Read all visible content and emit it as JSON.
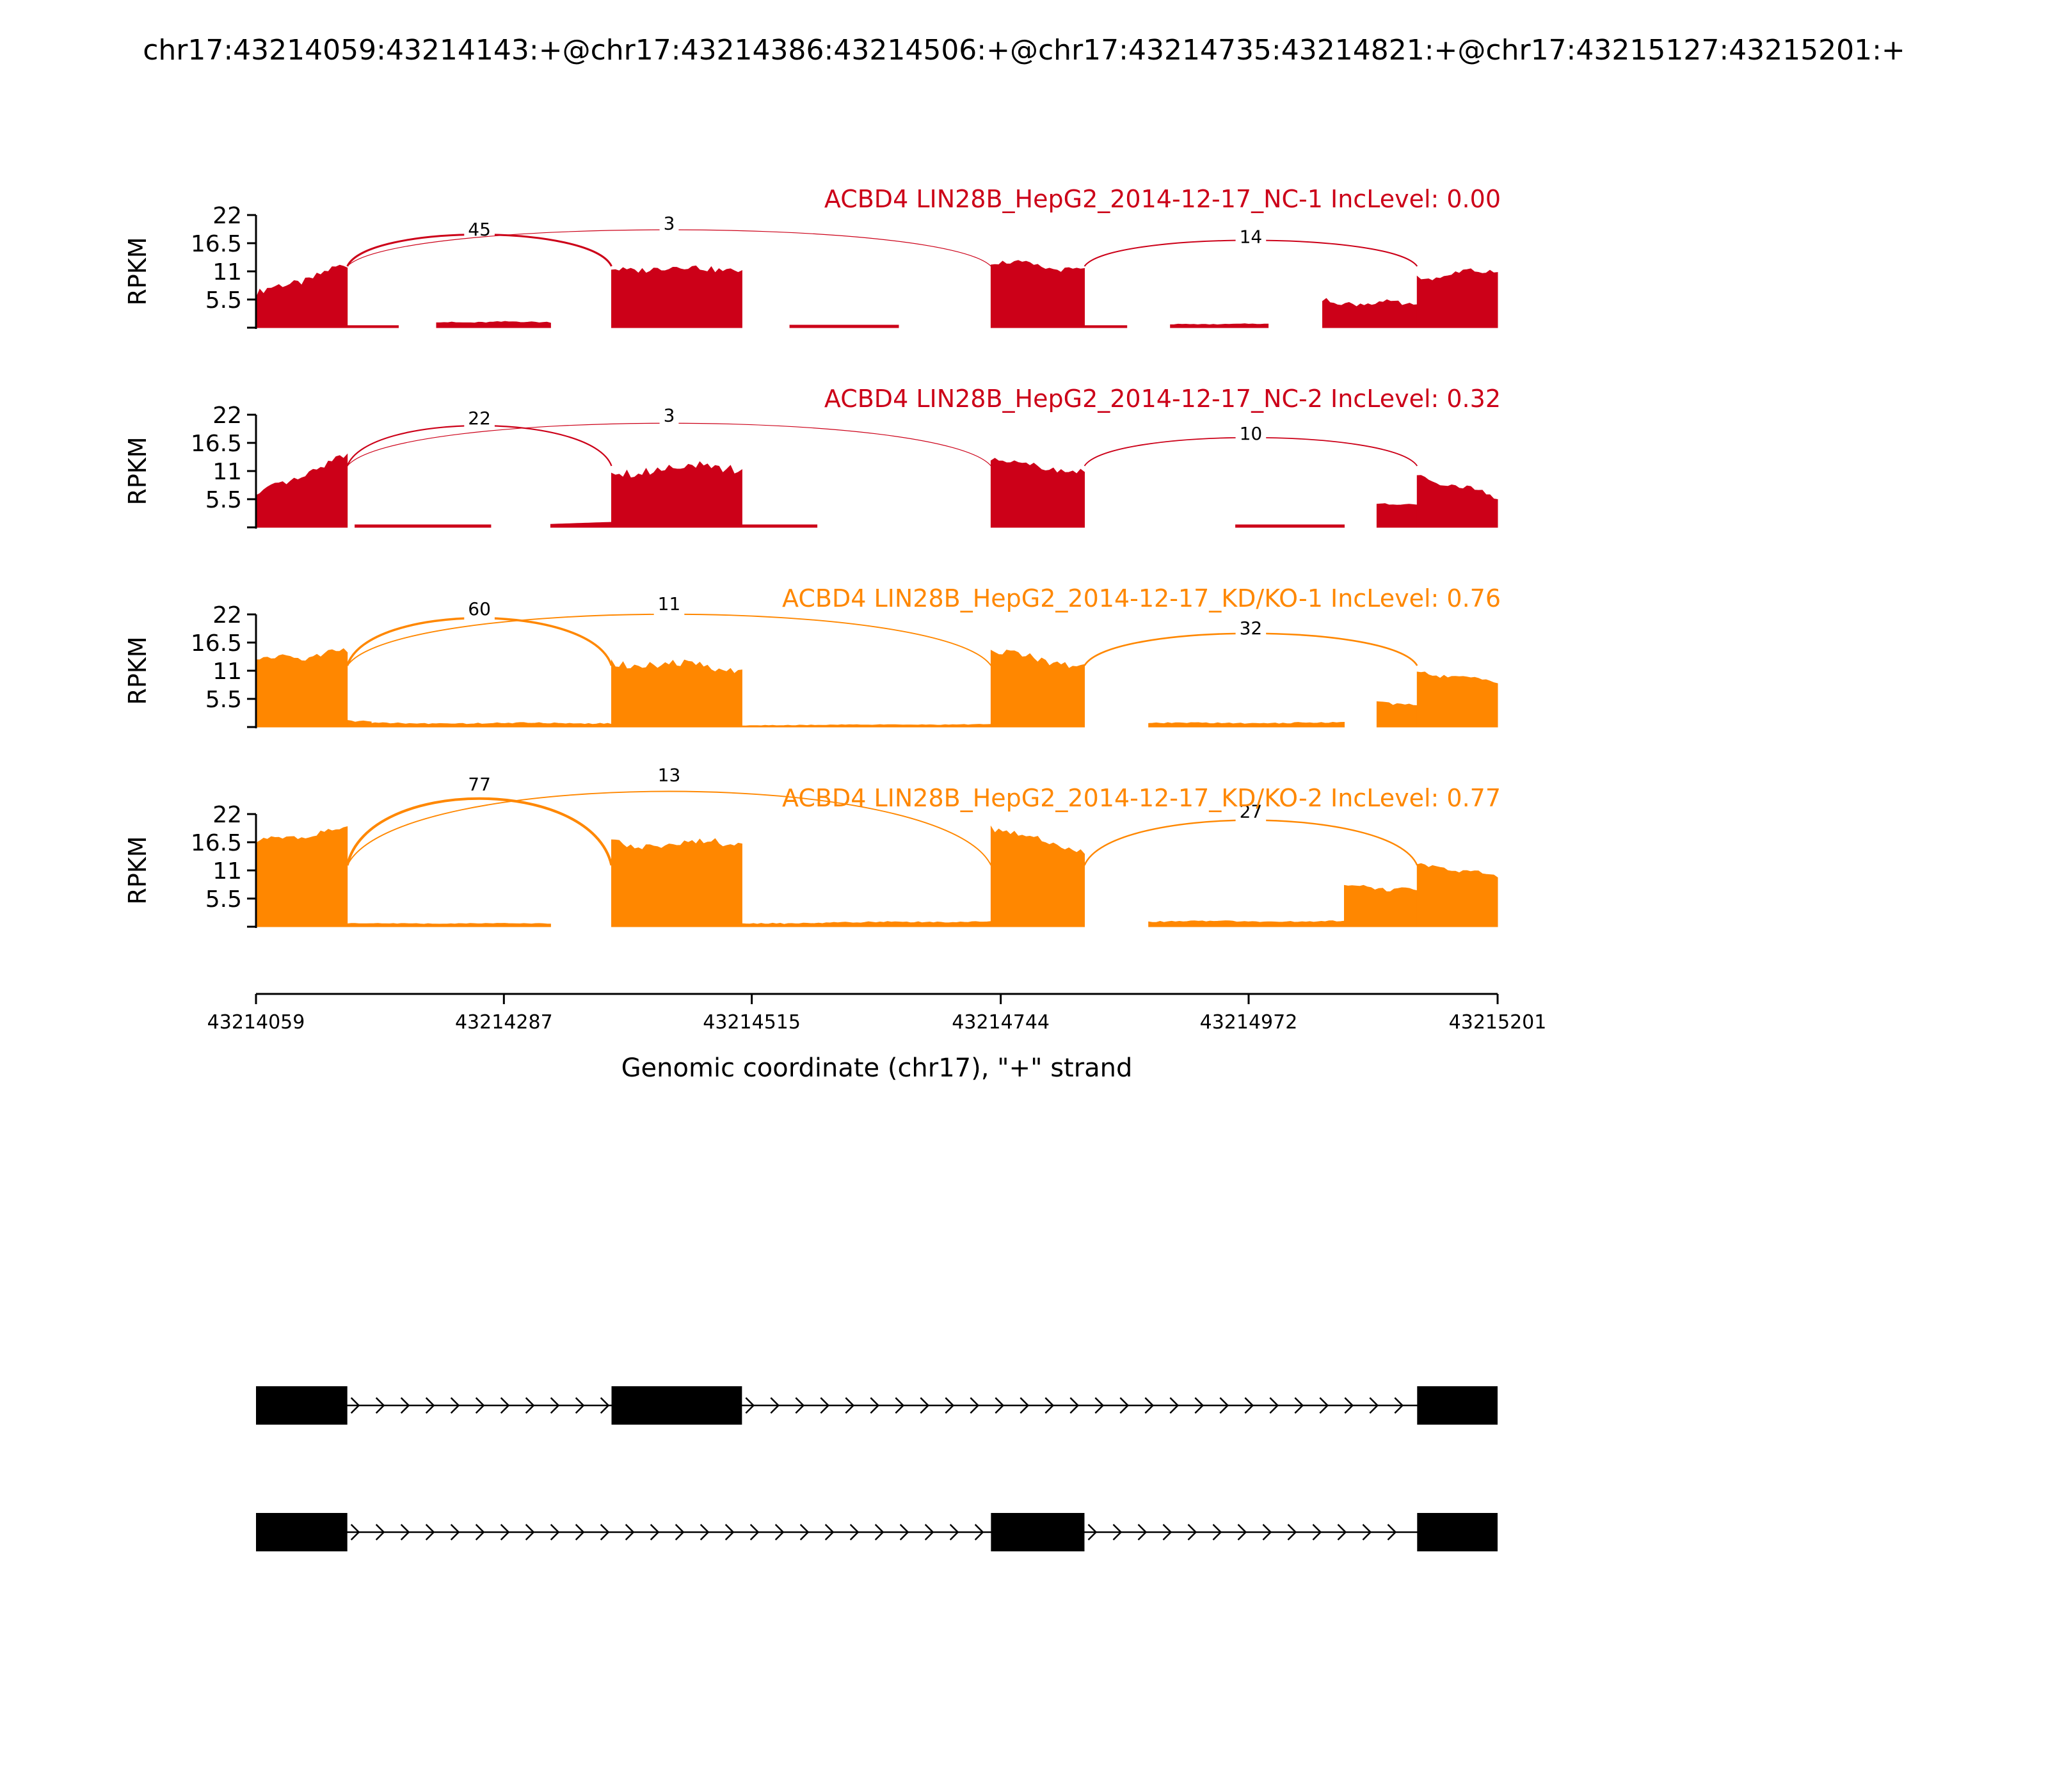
{
  "title": "chr17:43214059:43214143:+@chr17:43214386:43214506:+@chr17:43214735:43214821:+@chr17:43215127:43215201:+",
  "colors": {
    "nc": "#cc0018",
    "kd": "#ff8700",
    "gene": "#000000"
  },
  "chart_data": {
    "type": "area",
    "xlabel": "Genomic coordinate (chr17), \"+\" strand",
    "ylabel": "RPKM",
    "xlim": [
      43214059,
      43215201
    ],
    "x_ticks": [
      "43214059",
      "43214287",
      "43214515",
      "43214744",
      "43214972",
      "43215201"
    ],
    "ylim": [
      0,
      22
    ],
    "y_ticks": [
      "22",
      "16.5",
      "11",
      "5.5"
    ],
    "exons": [
      [
        43214059,
        43214143
      ],
      [
        43214386,
        43214506
      ],
      [
        43214735,
        43214821
      ],
      [
        43215127,
        43215201
      ]
    ],
    "isoforms": [
      [
        [
          43214059,
          43214143
        ],
        [
          43214386,
          43214506
        ],
        [
          43215127,
          43215201
        ]
      ],
      [
        [
          43214059,
          43214143
        ],
        [
          43214735,
          43214821
        ],
        [
          43215127,
          43215201
        ]
      ]
    ],
    "series": [
      {
        "label": "ACBD4 LIN28B_HepG2_2014-12-17_NC-1 IncLevel: 0.00",
        "group": "nc",
        "coverage": [
          {
            "start": 43214059,
            "end": 43214143,
            "left": 6.5,
            "right": 12,
            "wobble": 1.2
          },
          {
            "start": 43214143,
            "end": 43214190,
            "left": 0.4,
            "right": 0.4,
            "wobble": 0
          },
          {
            "start": 43214225,
            "end": 43214330,
            "left": 1.0,
            "right": 1.1,
            "wobble": 0.2
          },
          {
            "start": 43214386,
            "end": 43214506,
            "left": 11.5,
            "right": 11.5,
            "wobble": 1.0
          },
          {
            "start": 43214550,
            "end": 43214650,
            "left": 0.5,
            "right": 0.5,
            "wobble": 0
          },
          {
            "start": 43214735,
            "end": 43214821,
            "left": 13,
            "right": 11,
            "wobble": 0.8
          },
          {
            "start": 43214821,
            "end": 43214860,
            "left": 0.4,
            "right": 0.4,
            "wobble": 0
          },
          {
            "start": 43214900,
            "end": 43214990,
            "left": 0.6,
            "right": 0.7,
            "wobble": 0.1
          },
          {
            "start": 43215040,
            "end": 43215127,
            "left": 5.0,
            "right": 4.5,
            "wobble": 0.8
          },
          {
            "start": 43215127,
            "end": 43215201,
            "left": 9.5,
            "right": 11.5,
            "wobble": 0.8
          }
        ],
        "junctions": [
          {
            "from": 43214143,
            "to": 43214386,
            "count": "45",
            "height": 16.2
          },
          {
            "from": 43214143,
            "to": 43214735,
            "count": "3",
            "height": 17.2
          },
          {
            "from": 43214821,
            "to": 43215127,
            "count": "14",
            "height": 15.0
          }
        ]
      },
      {
        "label": "ACBD4 LIN28B_HepG2_2014-12-17_NC-2 IncLevel: 0.32",
        "group": "nc",
        "coverage": [
          {
            "start": 43214059,
            "end": 43214143,
            "left": 6.0,
            "right": 14,
            "wobble": 1.0
          },
          {
            "start": 43214150,
            "end": 43214275,
            "left": 0.5,
            "right": 0.5,
            "wobble": 0
          },
          {
            "start": 43214330,
            "end": 43214386,
            "left": 0.6,
            "right": 1.0,
            "wobble": 0
          },
          {
            "start": 43214386,
            "end": 43214506,
            "left": 11,
            "right": 12,
            "wobble": 1.6
          },
          {
            "start": 43214506,
            "end": 43214575,
            "left": 0.5,
            "right": 0.5,
            "wobble": 0
          },
          {
            "start": 43214735,
            "end": 43214821,
            "left": 13.5,
            "right": 10.5,
            "wobble": 0.8
          },
          {
            "start": 43214960,
            "end": 43215060,
            "left": 0.5,
            "right": 0.5,
            "wobble": 0
          },
          {
            "start": 43215090,
            "end": 43215127,
            "left": 4.5,
            "right": 4.5,
            "wobble": 0.2
          },
          {
            "start": 43215127,
            "end": 43215201,
            "left": 10,
            "right": 6.0,
            "wobble": 0.8
          }
        ],
        "junctions": [
          {
            "from": 43214143,
            "to": 43214386,
            "count": "22",
            "height": 18.0
          },
          {
            "from": 43214143,
            "to": 43214735,
            "count": "3",
            "height": 18.5
          },
          {
            "from": 43214821,
            "to": 43215127,
            "count": "10",
            "height": 15.5
          }
        ]
      },
      {
        "label": "ACBD4 LIN28B_HepG2_2014-12-17_KD/KO-1 IncLevel: 0.76",
        "group": "kd",
        "coverage": [
          {
            "start": 43214059,
            "end": 43214143,
            "left": 13,
            "right": 14.5,
            "wobble": 1.0
          },
          {
            "start": 43214143,
            "end": 43214165,
            "left": 1.2,
            "right": 1.0,
            "wobble": 0.2
          },
          {
            "start": 43214165,
            "end": 43214386,
            "left": 0.7,
            "right": 0.7,
            "wobble": 0.2
          },
          {
            "start": 43214386,
            "end": 43214506,
            "left": 12.5,
            "right": 11.5,
            "wobble": 1.2
          },
          {
            "start": 43214506,
            "end": 43214735,
            "left": 0.3,
            "right": 0.5,
            "wobble": 0.1
          },
          {
            "start": 43214735,
            "end": 43214821,
            "left": 15,
            "right": 11.5,
            "wobble": 1.0
          },
          {
            "start": 43214880,
            "end": 43215060,
            "left": 0.7,
            "right": 0.8,
            "wobble": 0.2
          },
          {
            "start": 43215090,
            "end": 43215127,
            "left": 5.0,
            "right": 4.0,
            "wobble": 0.4
          },
          {
            "start": 43215127,
            "end": 43215201,
            "left": 10.5,
            "right": 9.0,
            "wobble": 0.6
          }
        ],
        "junctions": [
          {
            "from": 43214143,
            "to": 43214386,
            "count": "60",
            "height": 19.5
          },
          {
            "from": 43214143,
            "to": 43214735,
            "count": "11",
            "height": 20.3
          },
          {
            "from": 43214821,
            "to": 43215127,
            "count": "32",
            "height": 16.3
          }
        ]
      },
      {
        "label": "ACBD4 LIN28B_HepG2_2014-12-17_KD/KO-2 IncLevel: 0.77",
        "group": "kd",
        "coverage": [
          {
            "start": 43214059,
            "end": 43214143,
            "left": 16.5,
            "right": 19,
            "wobble": 0.8
          },
          {
            "start": 43214143,
            "end": 43214330,
            "left": 0.6,
            "right": 0.6,
            "wobble": 0.1
          },
          {
            "start": 43214386,
            "end": 43214506,
            "left": 16,
            "right": 16.5,
            "wobble": 1.2
          },
          {
            "start": 43214506,
            "end": 43214735,
            "left": 0.6,
            "right": 1.0,
            "wobble": 0.2
          },
          {
            "start": 43214735,
            "end": 43214821,
            "left": 19.5,
            "right": 14.5,
            "wobble": 1.0
          },
          {
            "start": 43214880,
            "end": 43215060,
            "left": 1.0,
            "right": 1.0,
            "wobble": 0.2
          },
          {
            "start": 43215060,
            "end": 43215127,
            "left": 8.0,
            "right": 7.0,
            "wobble": 0.6
          },
          {
            "start": 43215127,
            "end": 43215201,
            "left": 12,
            "right": 9.8,
            "wobble": 0.6
          }
        ],
        "junctions": [
          {
            "from": 43214143,
            "to": 43214386,
            "count": "77",
            "height": 23.5
          },
          {
            "from": 43214143,
            "to": 43214735,
            "count": "13",
            "height": 25.0
          },
          {
            "from": 43214821,
            "to": 43215127,
            "count": "27",
            "height": 19.0
          }
        ]
      }
    ]
  }
}
